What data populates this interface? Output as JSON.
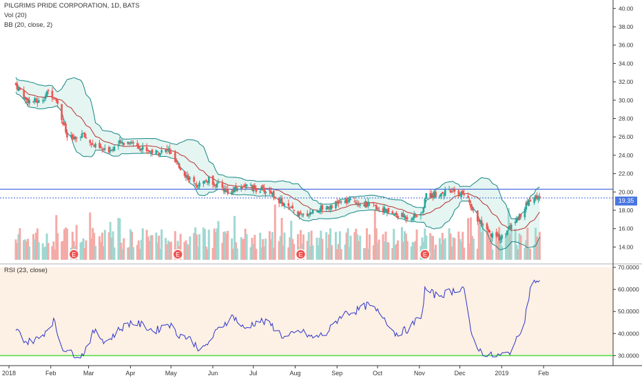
{
  "legend": {
    "title": "PILGRIMS PRIDE CORPORATION, 1D, BATS",
    "volume": "Vol (20)",
    "bollinger": "BB (20, close, 2)",
    "rsi": "RSI (23, close)"
  },
  "price_badge": "19.35",
  "colors": {
    "up": "#26a69a",
    "down": "#ef5350",
    "bb_band": "#138484",
    "bb_basis": "#b53030",
    "resistance": "#3a5fd9",
    "rsi_line": "#2a34c8",
    "rsi_bg": "#fdf0e4",
    "rsi_level": "#4be14b"
  },
  "chart_data": [
    {
      "type": "candlestick",
      "title": "PILGRIMS PRIDE CORPORATION, 1D, BATS",
      "x_ticks": [
        "2018",
        "Feb",
        "Mar",
        "Apr",
        "May",
        "Jun",
        "Jul",
        "Aug",
        "Sep",
        "Oct",
        "Nov",
        "Dec",
        "2019",
        "Feb"
      ],
      "x_tick_dates": [
        "2018-01-01",
        "2018-02-01",
        "2018-03-01",
        "2018-04-01",
        "2018-05-01",
        "2018-06-01",
        "2018-07-01",
        "2018-08-01",
        "2018-09-01",
        "2018-10-01",
        "2018-11-01",
        "2018-12-01",
        "2019-01-01",
        "2019-02-01"
      ],
      "y_ticks": [
        "40.00",
        "38.00",
        "36.00",
        "34.00",
        "32.00",
        "30.00",
        "28.00",
        "26.00",
        "24.00",
        "22.00",
        "20.00",
        "18.00",
        "16.00",
        "14.00"
      ],
      "ylim": [
        13,
        40.5
      ],
      "close_anchors": {
        "dates": [
          "2018-01-02",
          "2018-01-10",
          "2018-01-20",
          "2018-01-26",
          "2018-02-01",
          "2018-02-05",
          "2018-02-09",
          "2018-02-15",
          "2018-02-20",
          "2018-03-01",
          "2018-03-10",
          "2018-03-20",
          "2018-03-28",
          "2018-04-05",
          "2018-04-15",
          "2018-04-25",
          "2018-05-01",
          "2018-05-10",
          "2018-05-15",
          "2018-05-25",
          "2018-06-01",
          "2018-06-10",
          "2018-06-20",
          "2018-06-28",
          "2018-07-02",
          "2018-07-10",
          "2018-07-20",
          "2018-07-28",
          "2018-08-01",
          "2018-08-10",
          "2018-08-20",
          "2018-09-01",
          "2018-09-10",
          "2018-09-20",
          "2018-10-01",
          "2018-10-10",
          "2018-10-20",
          "2018-10-30",
          "2018-11-01",
          "2018-11-10",
          "2018-11-20",
          "2018-11-30",
          "2018-12-05",
          "2018-12-12",
          "2018-12-20",
          "2018-12-27",
          "2019-01-05",
          "2019-01-12",
          "2019-01-18",
          "2019-01-22",
          "2019-01-25"
        ],
        "values": [
          31.7,
          30.0,
          29.8,
          30.9,
          30.2,
          28.0,
          26.0,
          25.7,
          26.3,
          25.0,
          24.4,
          25.3,
          25.5,
          24.8,
          24.3,
          24.5,
          23.0,
          21.6,
          20.6,
          21.3,
          20.7,
          19.9,
          20.8,
          20.3,
          20.3,
          20.0,
          18.5,
          17.8,
          17.3,
          17.9,
          18.4,
          18.9,
          19.0,
          18.6,
          18.1,
          17.5,
          17.2,
          17.6,
          19.5,
          19.8,
          20.0,
          19.8,
          18.5,
          16.5,
          15.2,
          15.0,
          16.5,
          17.8,
          19.2,
          19.5,
          19.35
        ]
      },
      "resistance_level": 20.3,
      "last_close": 19.35,
      "bollinger_bands": {
        "name": "BB (20, close, 2)",
        "period": 20,
        "stddev": 2
      },
      "earnings_markers": {
        "label": "E",
        "dates": [
          "2018-02-14",
          "2018-05-02",
          "2018-08-01",
          "2018-11-01"
        ]
      }
    },
    {
      "type": "bar",
      "title": "Vol (20)",
      "note": "Volume bars rendered beneath price, colored by daily direction"
    },
    {
      "type": "line",
      "title": "RSI (23, close)",
      "y_ticks": [
        "70.0000",
        "60.0000",
        "50.0000",
        "40.0000",
        "30.0000"
      ],
      "ylim": [
        27,
        70
      ],
      "level": 30,
      "anchors": {
        "dates": [
          "2018-01-02",
          "2018-01-10",
          "2018-01-20",
          "2018-01-30",
          "2018-02-05",
          "2018-02-12",
          "2018-02-20",
          "2018-03-01",
          "2018-03-10",
          "2018-03-20",
          "2018-03-28",
          "2018-04-05",
          "2018-04-15",
          "2018-04-25",
          "2018-05-01",
          "2018-05-10",
          "2018-05-20",
          "2018-06-01",
          "2018-06-12",
          "2018-06-20",
          "2018-07-01",
          "2018-07-10",
          "2018-07-20",
          "2018-08-01",
          "2018-08-10",
          "2018-08-20",
          "2018-09-01",
          "2018-09-10",
          "2018-09-20",
          "2018-10-01",
          "2018-10-10",
          "2018-10-20",
          "2018-10-30",
          "2018-11-01",
          "2018-11-10",
          "2018-11-20",
          "2018-11-30",
          "2018-12-05",
          "2018-12-12",
          "2018-12-20",
          "2018-12-27",
          "2019-01-02",
          "2019-01-08",
          "2019-01-14",
          "2019-01-18",
          "2019-01-22",
          "2019-01-25"
        ],
        "values": [
          42,
          36,
          38,
          46,
          34,
          31,
          30,
          41,
          36,
          42,
          45,
          44,
          41,
          45,
          40,
          38,
          32,
          42,
          48,
          42,
          46,
          44,
          38,
          41,
          38,
          40,
          49,
          50,
          53,
          48,
          40,
          42,
          49,
          60,
          57,
          59,
          61,
          40,
          32,
          30,
          30,
          31,
          37,
          47,
          60,
          64,
          63
        ]
      }
    }
  ]
}
